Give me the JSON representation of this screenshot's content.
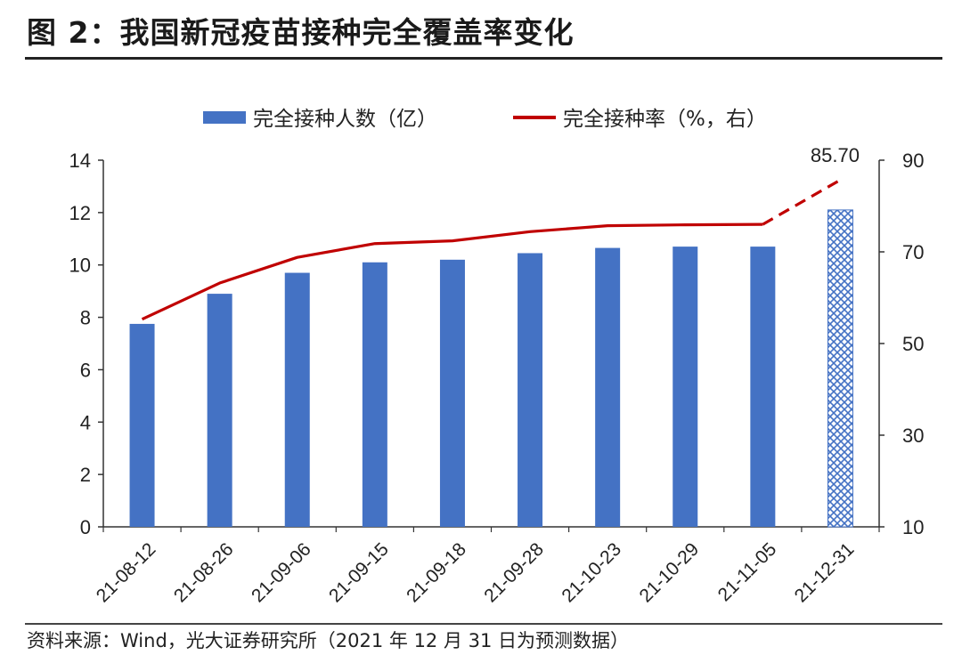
{
  "figure": {
    "title": "图 2：我国新冠疫苗接种完全覆盖率变化",
    "source": "资料来源：Wind，光大证券研究所（2021 年 12 月 31 日为预测数据）"
  },
  "chart_data": {
    "type": "bar",
    "categories": [
      "21-08-12",
      "21-08-26",
      "21-09-06",
      "21-09-15",
      "21-09-18",
      "21-09-28",
      "21-10-23",
      "21-10-29",
      "21-11-05",
      "21-12-31"
    ],
    "series": [
      {
        "name": "完全接种人数（亿）",
        "type": "bar",
        "axis": "left",
        "color": "#4472C4",
        "values": [
          7.75,
          8.9,
          9.7,
          10.1,
          10.2,
          10.45,
          10.65,
          10.7,
          10.7,
          12.1
        ],
        "forecast_index": 9,
        "forecast_style": "crosshatch"
      },
      {
        "name": "完全接种率（%，右）",
        "type": "line",
        "axis": "right",
        "color": "#C00000",
        "values": [
          55.3,
          63.2,
          68.8,
          71.8,
          72.4,
          74.4,
          75.7,
          75.9,
          76.0,
          85.7
        ],
        "forecast_from_index": 8,
        "forecast_style": "dashed"
      }
    ],
    "data_labels": [
      {
        "series": 1,
        "index": 9,
        "text": "85.70"
      }
    ],
    "y_left": {
      "min": 0,
      "max": 14,
      "ticks": [
        "0",
        "2",
        "4",
        "6",
        "8",
        "10",
        "12",
        "14"
      ]
    },
    "y_right": {
      "min": 10,
      "max": 90,
      "ticks": [
        "10",
        "30",
        "50",
        "70",
        "90"
      ]
    },
    "legend": "top-center",
    "grid": false
  }
}
